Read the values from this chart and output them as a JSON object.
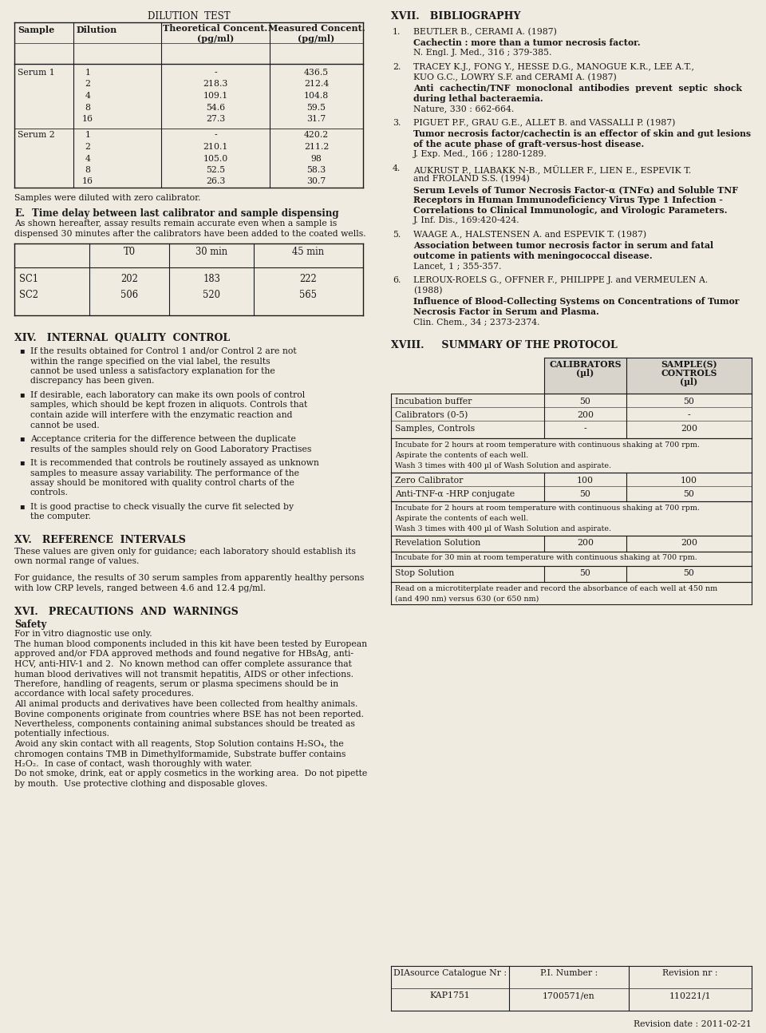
{
  "bg_color": "#f0ebe0",
  "title_dilution": "DILUTION  TEST",
  "dilution_headers": [
    "Sample",
    "Dilution",
    "Theoretical Concent.\n(pg/ml)",
    "Measured Concent.\n(pg/ml)"
  ],
  "serum1_rows": [
    [
      "Serum 1",
      "1",
      "-",
      "436.5"
    ],
    [
      "",
      "2",
      "218.3",
      "212.4"
    ],
    [
      "",
      "4",
      "109.1",
      "104.8"
    ],
    [
      "",
      "8",
      "54.6",
      "59.5"
    ],
    [
      "",
      "16",
      "27.3",
      "31.7"
    ]
  ],
  "serum2_rows": [
    [
      "Serum 2",
      "1",
      "-",
      "420.2"
    ],
    [
      "",
      "2",
      "210.1",
      "211.2"
    ],
    [
      "",
      "4",
      "105.0",
      "98"
    ],
    [
      "",
      "8",
      "52.5",
      "58.3"
    ],
    [
      "",
      "16",
      "26.3",
      "30.7"
    ]
  ],
  "footnote_dilution": "Samples were diluted with zero calibrator.",
  "section_e_head": "E.",
  "section_e_title": "Time delay between last calibrator and sample dispensing",
  "section_e_lines": [
    "As shown hereafter, assay results remain accurate even when a sample is",
    "dispensed 30 minutes after the calibrators have been added to the coated wells."
  ],
  "td_col_headers": [
    "",
    "T0",
    "30 min",
    "45 min"
  ],
  "td_rows": [
    [
      "SC1",
      "202",
      "183",
      "222"
    ],
    [
      "SC2",
      "506",
      "520",
      "565"
    ]
  ],
  "xiv_title": "XIV.   INTERNAL  QUALITY  CONTROL",
  "xiv_bullets": [
    "If the results obtained for Control 1 and/or Control 2 are not within the range specified on the vial label, the results cannot be used unless a satisfactory explanation for the discrepancy has been given.",
    "If desirable, each laboratory can make its own pools of control samples, which should be kept frozen in aliquots.  Controls that contain azide will interfere with the enzymatic reaction and cannot be used.",
    "Acceptance criteria for the difference between the duplicate results of the samples should rely on Good Laboratory Practises",
    "It is recommended that controls be routinely assayed as unknown samples to measure assay variability.  The performance of the assay should be monitored with quality control charts of the controls.",
    "It is good practise to check visually the curve fit selected by the computer."
  ],
  "xv_title": "XV.   REFERENCE  INTERVALS",
  "xv_para1_lines": [
    "These values are given only for guidance; each laboratory should establish its",
    "own normal range of values."
  ],
  "xv_para2_lines": [
    "For guidance, the results of 30 serum samples from apparently healthy persons",
    "with low CRP levels, ranged between 4.6 and 12.4 pg/ml."
  ],
  "xvi_title": "XVI.   PRECAUTIONS  AND  WARNINGS",
  "xvi_safety": "Safety",
  "xvi_invitro": "For in vitro diagnostic use only.",
  "xvi_para1_lines": [
    "The human blood components included in this kit have been tested by European",
    "approved and/or FDA approved methods and found negative for HBsAg, anti-",
    "HCV, anti-HIV-1 and 2.  No known method can offer complete assurance that",
    "human blood derivatives will not transmit hepatitis, AIDS or other infections.",
    "Therefore, handling of reagents, serum or plasma specimens should be in",
    "accordance with local safety procedures."
  ],
  "xvi_para2_lines": [
    "All animal products and derivatives have been collected from healthy animals.",
    "Bovine components originate from countries where BSE has not been reported.",
    "Nevertheless, components containing animal substances should be treated as",
    "potentially infectious."
  ],
  "xvi_para3_lines": [
    "Avoid any skin contact with all reagents, Stop Solution contains H₂SO₄, the",
    "chromogen contains TMB in Dimethylformamide, Substrate buffer contains",
    "H₂O₂.  In case of contact, wash thoroughly with water."
  ],
  "xvi_para4_lines": [
    "Do not smoke, drink, eat or apply cosmetics in the working area.  Do not pipette",
    "by mouth.  Use protective clothing and disposable gloves."
  ],
  "xvii_title": "XVII.   BIBLIOGRAPHY",
  "references": [
    {
      "num": "1.",
      "author_lines": [
        "BEUTLER B., CERAMI A. (1987)"
      ],
      "bold_lines": [
        "Cachectin : more than a tumor necrosis factor."
      ],
      "journal": "N. Engl. J. Med., 316 ; 379-385."
    },
    {
      "num": "2.",
      "author_lines": [
        "TRACEY K.J., FONG Y., HESSE D.G., MANOGUE K.R., LEE A.T.,",
        "KUO G.C., LOWRY S.F. and CERAMI A. (1987)"
      ],
      "bold_lines": [
        "Anti  cachectin/TNF  monoclonal  antibodies  prevent  septic  shock",
        "during lethal bacteraemia."
      ],
      "journal": "Nature, 330 : 662-664."
    },
    {
      "num": "3.",
      "author_lines": [
        "PIGUET P.F., GRAU G.E., ALLET B. and VASSALLI P. (1987)"
      ],
      "bold_lines": [
        "Tumor necrosis factor/cachectin is an effector of skin and gut lesions",
        "of the acute phase of graft-versus-host disease."
      ],
      "journal": "J. Exp. Med., 166 ; 1280-1289."
    },
    {
      "num": "4.",
      "author_lines": [
        "AUKRUST P., LIABAKK N-B., MÜLLER F., LIEN E., ESPEVIK T.",
        "and FROLAND S.S. (1994)"
      ],
      "bold_lines": [
        "Serum Levels of Tumor Necrosis Factor-α (TNFα) and Soluble TNF",
        "Receptors in Human Immunodeficiency Virus Type 1 Infection -",
        "Correlations to Clinical Immunologic, and Virologic Parameters."
      ],
      "journal": "J. Inf. Dis., 169:420-424."
    },
    {
      "num": "5.",
      "author_lines": [
        "WAAGE A., HALSTENSEN A. and ESPEVIK T. (1987)"
      ],
      "bold_lines": [
        "Association between tumor necrosis factor in serum and fatal",
        "outcome in patients with meningococcal disease."
      ],
      "journal": "Lancet, 1 ; 355-357."
    },
    {
      "num": "6.",
      "author_lines": [
        "LEROUX-ROELS G., OFFNER F., PHILIPPE J. and VERMEULEN A.",
        "(1988)"
      ],
      "bold_lines": [
        "Influence of Blood-Collecting Systems on Concentrations of Tumor",
        "Necrosis Factor in Serum and Plasma."
      ],
      "journal": "Clin. Chem., 34 ; 2373-2374."
    }
  ],
  "xviii_title": "XVIII.     SUMMARY OF THE PROTOCOL",
  "pt_rows1": [
    [
      "Incubation buffer",
      "50",
      "50"
    ],
    [
      "Calibrators (0-5)",
      "200",
      "-"
    ],
    [
      "Samples, Controls",
      "-",
      "200"
    ]
  ],
  "pt_note1": [
    "Incubate for 2 hours at room temperature with continuous shaking at 700 rpm.",
    "Aspirate the contents of each well.",
    "Wash 3 times with 400 µl of Wash Solution and aspirate."
  ],
  "pt_rows2": [
    [
      "Zero Calibrator",
      "100",
      "100"
    ],
    [
      "Anti-TNF-α -HRP conjugate",
      "50",
      "50"
    ]
  ],
  "pt_note2": [
    "Incubate for 2 hours at room temperature with continuous shaking at 700 rpm.",
    "Aspirate the contents of each well.",
    "Wash 3 times with 400 µl of Wash Solution and aspirate."
  ],
  "pt_rows3": [
    [
      "Revelation Solution",
      "200",
      "200"
    ]
  ],
  "pt_note3": [
    "Incubate for 30 min at room temperature with continuous shaking at 700 rpm."
  ],
  "pt_rows4": [
    [
      "Stop Solution",
      "50",
      "50"
    ]
  ],
  "pt_note4": [
    "Read on a microtiterplate reader and record the absorbance of each well at 450 nm",
    "(and 490 nm) versus 630 (or 650 nm)"
  ],
  "ft_labels": [
    "DIAsource Catalogue Nr :",
    "P.I. Number :",
    "Revision nr :"
  ],
  "ft_vals": [
    "KAP1751",
    "1700571/en",
    "110221/1"
  ],
  "revision_date": "Revision date : 2011-02-21"
}
